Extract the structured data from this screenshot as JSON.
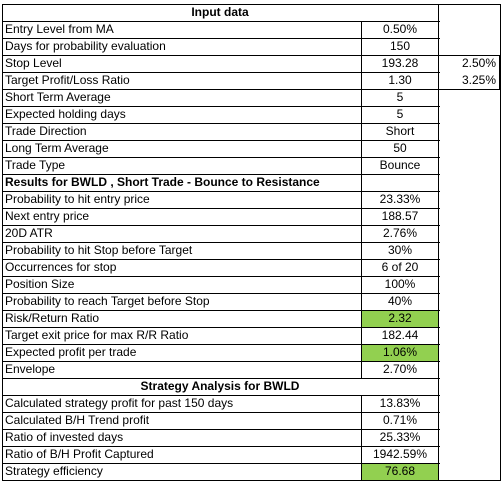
{
  "colors": {
    "highlight": "#92d050",
    "border": "#000000",
    "background": "#ffffff"
  },
  "headers": {
    "input": "Input data",
    "results": "Results for BWLD , Short Trade - Bounce to Resistance",
    "strategy": "Strategy Analysis for BWLD"
  },
  "rows": [
    {
      "label": "Entry Level from MA",
      "value": "0.50%"
    },
    {
      "label": "Days for probability evaluation",
      "value": "150"
    },
    {
      "label": "Stop Level",
      "value": "193.28",
      "extra": "2.50%"
    },
    {
      "label": "Target Profit/Loss Ratio",
      "value": "1.30",
      "extra": "3.25%"
    },
    {
      "label": "Short Term Average",
      "value": "5"
    },
    {
      "label": "Expected holding days",
      "value": "5"
    },
    {
      "label": "Trade Direction",
      "value": "Short"
    },
    {
      "label": "Long Term Average",
      "value": "50"
    },
    {
      "label": "Trade Type",
      "value": "Bounce"
    },
    {
      "section": "results"
    },
    {
      "label": "Probability to hit entry price",
      "value": "23.33%"
    },
    {
      "label": "Next entry price",
      "value": "188.57"
    },
    {
      "label": "20D ATR",
      "value": "2.76%"
    },
    {
      "label": "Probability to hit Stop before Target",
      "value": "30%"
    },
    {
      "label": "Occurrences for stop",
      "value": "6 of 20"
    },
    {
      "label": "Position Size",
      "value": "100%"
    },
    {
      "label": "Probability to reach Target before Stop",
      "value": "40%"
    },
    {
      "label": "Risk/Return Ratio",
      "value": "2.32",
      "highlight": true
    },
    {
      "label": "Target exit price for max R/R Ratio",
      "value": "182.44"
    },
    {
      "label": "Expected profit per trade",
      "value": "1.06%",
      "highlight": true
    },
    {
      "label": "Envelope",
      "value": "2.70%"
    },
    {
      "strategyHeader": true
    },
    {
      "label": "Calculated strategy profit for past 150 days",
      "value": "13.83%"
    },
    {
      "label": "Calculated B/H Trend profit",
      "value": "0.71%"
    },
    {
      "label": "Ratio of invested days",
      "value": "25.33%"
    },
    {
      "label": "Ratio of B/H Profit Captured",
      "value": "1942.59%"
    },
    {
      "label": "Strategy efficiency",
      "value": "76.68",
      "highlight": true
    }
  ]
}
